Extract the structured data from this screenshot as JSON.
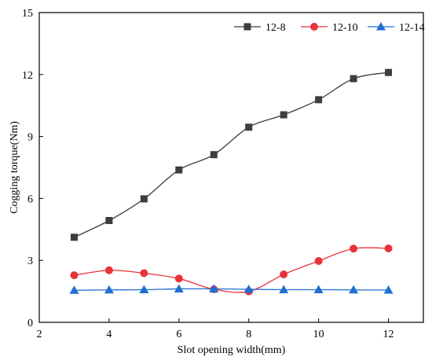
{
  "chart_data": {
    "type": "line",
    "title": "",
    "xlabel": "Slot opening width(mm)",
    "ylabel": "Cogging torque(Nm)",
    "xlim": [
      2,
      13
    ],
    "ylim": [
      0,
      15
    ],
    "xticks": [
      2,
      4,
      6,
      8,
      10,
      12
    ],
    "yticks": [
      0,
      3,
      6,
      9,
      12,
      15
    ],
    "grid": false,
    "legend_position": "top-right",
    "smooth": true,
    "x": [
      3,
      4,
      5,
      6,
      7,
      8,
      9,
      10,
      11,
      12
    ],
    "series": [
      {
        "name": "12-8",
        "color": "#3d3d3d",
        "marker": "square",
        "values": [
          4.12,
          4.93,
          5.98,
          7.38,
          8.12,
          9.45,
          10.05,
          10.78,
          11.8,
          12.1
        ]
      },
      {
        "name": "12-10",
        "color": "#e8333a",
        "marker": "circle",
        "values": [
          2.28,
          2.52,
          2.38,
          2.12,
          1.6,
          1.5,
          2.32,
          2.97,
          3.57,
          3.58
        ]
      },
      {
        "name": "12-14",
        "color": "#1f6fd0",
        "marker": "triangle",
        "values": [
          1.55,
          1.57,
          1.58,
          1.62,
          1.62,
          1.6,
          1.58,
          1.58,
          1.57,
          1.56
        ]
      }
    ]
  }
}
